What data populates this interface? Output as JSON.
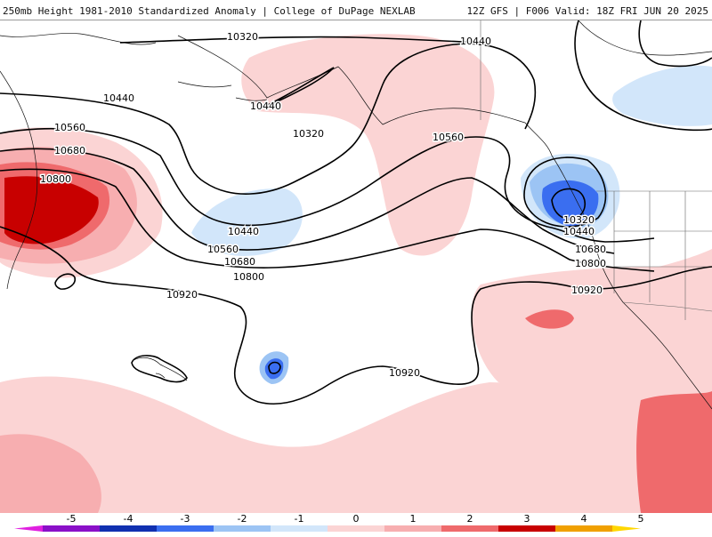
{
  "header": {
    "title_left": "250mb Height 1981-2010 Standardized Anomaly | College of DuPage NEXLAB",
    "title_right": "12Z GFS | F006 Valid: 18Z FRI JUN 20 2025"
  },
  "colors": {
    "anomaly_m5": "#e020e0",
    "anomaly_m4": "#8a10c8",
    "anomaly_m3": "#1030b0",
    "anomaly_m2": "#3a6ef0",
    "anomaly_m1": "#9cc4f4",
    "anomaly_m0": "#d2e6fa",
    "anomaly_p0": "#fbd4d4",
    "anomaly_p1": "#f7aeb0",
    "anomaly_p2": "#ef6a6c",
    "anomaly_p3": "#c80000",
    "anomaly_p4": "#f0a000",
    "anomaly_p5": "#ffd700",
    "contour": "#000000"
  },
  "contour_labels": [
    "10320",
    "10440",
    "10440",
    "10440",
    "10560",
    "10680",
    "10800",
    "10320",
    "10440",
    "10560",
    "10680",
    "10800",
    "10920",
    "10560",
    "10320",
    "10440",
    "10680",
    "10800",
    "10920",
    "10920"
  ],
  "colorbar": {
    "ticks": [
      "-5",
      "-4",
      "-3",
      "-2",
      "-1",
      "0",
      "1",
      "2",
      "3",
      "4",
      "5"
    ],
    "segment_colors": [
      "#e020e0",
      "#8a10c8",
      "#1030b0",
      "#3a6ef0",
      "#9cc4f4",
      "#d2e6fa",
      "#fbd4d4",
      "#f7aeb0",
      "#ef6a6c",
      "#c80000",
      "#f0a000",
      "#ffd700"
    ]
  }
}
